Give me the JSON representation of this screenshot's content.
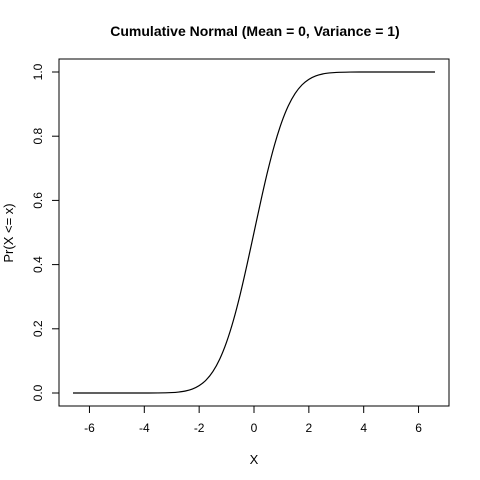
{
  "chart_data": {
    "type": "line",
    "title": "Cumulative Normal (Mean = 0, Variance = 1)",
    "xlabel": "X",
    "ylabel": "Pr(X <= x)",
    "xlim": [
      -6.6,
      6.6
    ],
    "ylim": [
      0,
      1
    ],
    "x_ticks": [
      -6,
      -4,
      -2,
      0,
      2,
      4,
      6
    ],
    "y_ticks": [
      0,
      0.2,
      0.4,
      0.6,
      0.8,
      1
    ],
    "x_tick_labels": [
      "-6",
      "-4",
      "-2",
      "0",
      "2",
      "4",
      "6"
    ],
    "y_tick_labels": [
      "0.0",
      "0.2",
      "0.4",
      "0.6",
      "0.8",
      "1.0"
    ],
    "grid": false,
    "series": [
      {
        "color": "#000000",
        "x": [
          -6.6,
          -6.0,
          -5.0,
          -4.0,
          -3.5,
          -3.0,
          -2.75,
          -2.5,
          -2.25,
          -2.0,
          -1.75,
          -1.5,
          -1.25,
          -1.0,
          -0.75,
          -0.5,
          -0.25,
          0.0,
          0.25,
          0.5,
          0.75,
          1.0,
          1.25,
          1.5,
          1.75,
          2.0,
          2.25,
          2.5,
          2.75,
          3.0,
          3.5,
          4.0,
          5.0,
          6.0,
          6.6
        ],
        "y": [
          0.0,
          0.0,
          0.0,
          0.0,
          0.0002,
          0.0013,
          0.003,
          0.0062,
          0.0122,
          0.0228,
          0.0401,
          0.0668,
          0.1056,
          0.1587,
          0.2266,
          0.3085,
          0.4013,
          0.5,
          0.5987,
          0.6915,
          0.7734,
          0.8413,
          0.8944,
          0.9332,
          0.9599,
          0.9772,
          0.9878,
          0.9938,
          0.997,
          0.9987,
          0.9998,
          1.0,
          1.0,
          1.0,
          1.0
        ]
      }
    ]
  }
}
